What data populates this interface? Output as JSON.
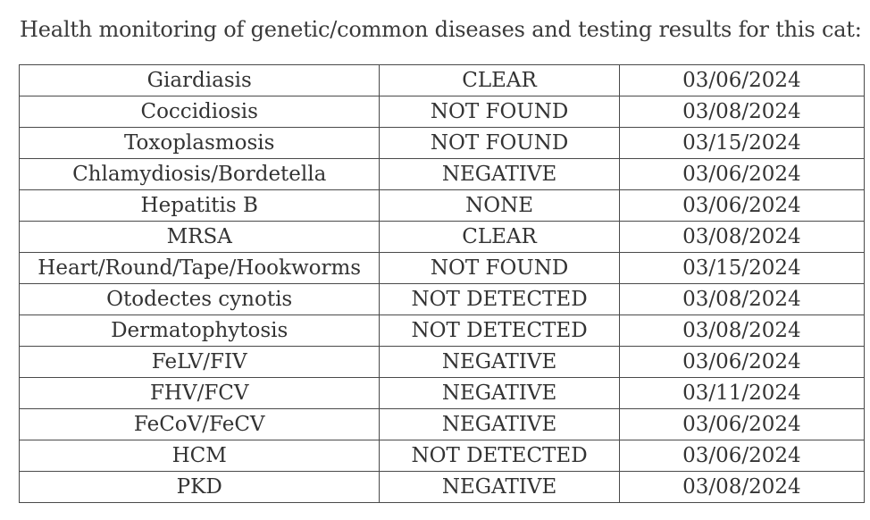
{
  "heading": "Health monitoring of genetic/common diseases and testing results for this cat:",
  "rows": [
    {
      "disease": "Giardiasis",
      "result": "CLEAR",
      "date": "03/06/2024"
    },
    {
      "disease": "Coccidiosis",
      "result": "NOT FOUND",
      "date": "03/08/2024"
    },
    {
      "disease": "Toxoplasmosis",
      "result": "NOT FOUND",
      "date": "03/15/2024"
    },
    {
      "disease": "Chlamydiosis/Bordetella",
      "result": "NEGATIVE",
      "date": "03/06/2024"
    },
    {
      "disease": "Hepatitis B",
      "result": "NONE",
      "date": "03/06/2024"
    },
    {
      "disease": "MRSA",
      "result": "CLEAR",
      "date": "03/08/2024"
    },
    {
      "disease": "Heart/Round/Tape/Hookworms",
      "result": "NOT FOUND",
      "date": "03/15/2024"
    },
    {
      "disease": "Otodectes cynotis",
      "result": "NOT DETECTED",
      "date": "03/08/2024"
    },
    {
      "disease": "Dermatophytosis",
      "result": "NOT DETECTED",
      "date": "03/08/2024"
    },
    {
      "disease": "FeLV/FIV",
      "result": "NEGATIVE",
      "date": "03/06/2024"
    },
    {
      "disease": "FHV/FCV",
      "result": "NEGATIVE",
      "date": "03/11/2024"
    },
    {
      "disease": "FeCoV/FeCV",
      "result": "NEGATIVE",
      "date": "03/06/2024"
    },
    {
      "disease": "HCM",
      "result": "NOT DETECTED",
      "date": "03/06/2024"
    },
    {
      "disease": "PKD",
      "result": "NEGATIVE",
      "date": "03/08/2024"
    }
  ]
}
